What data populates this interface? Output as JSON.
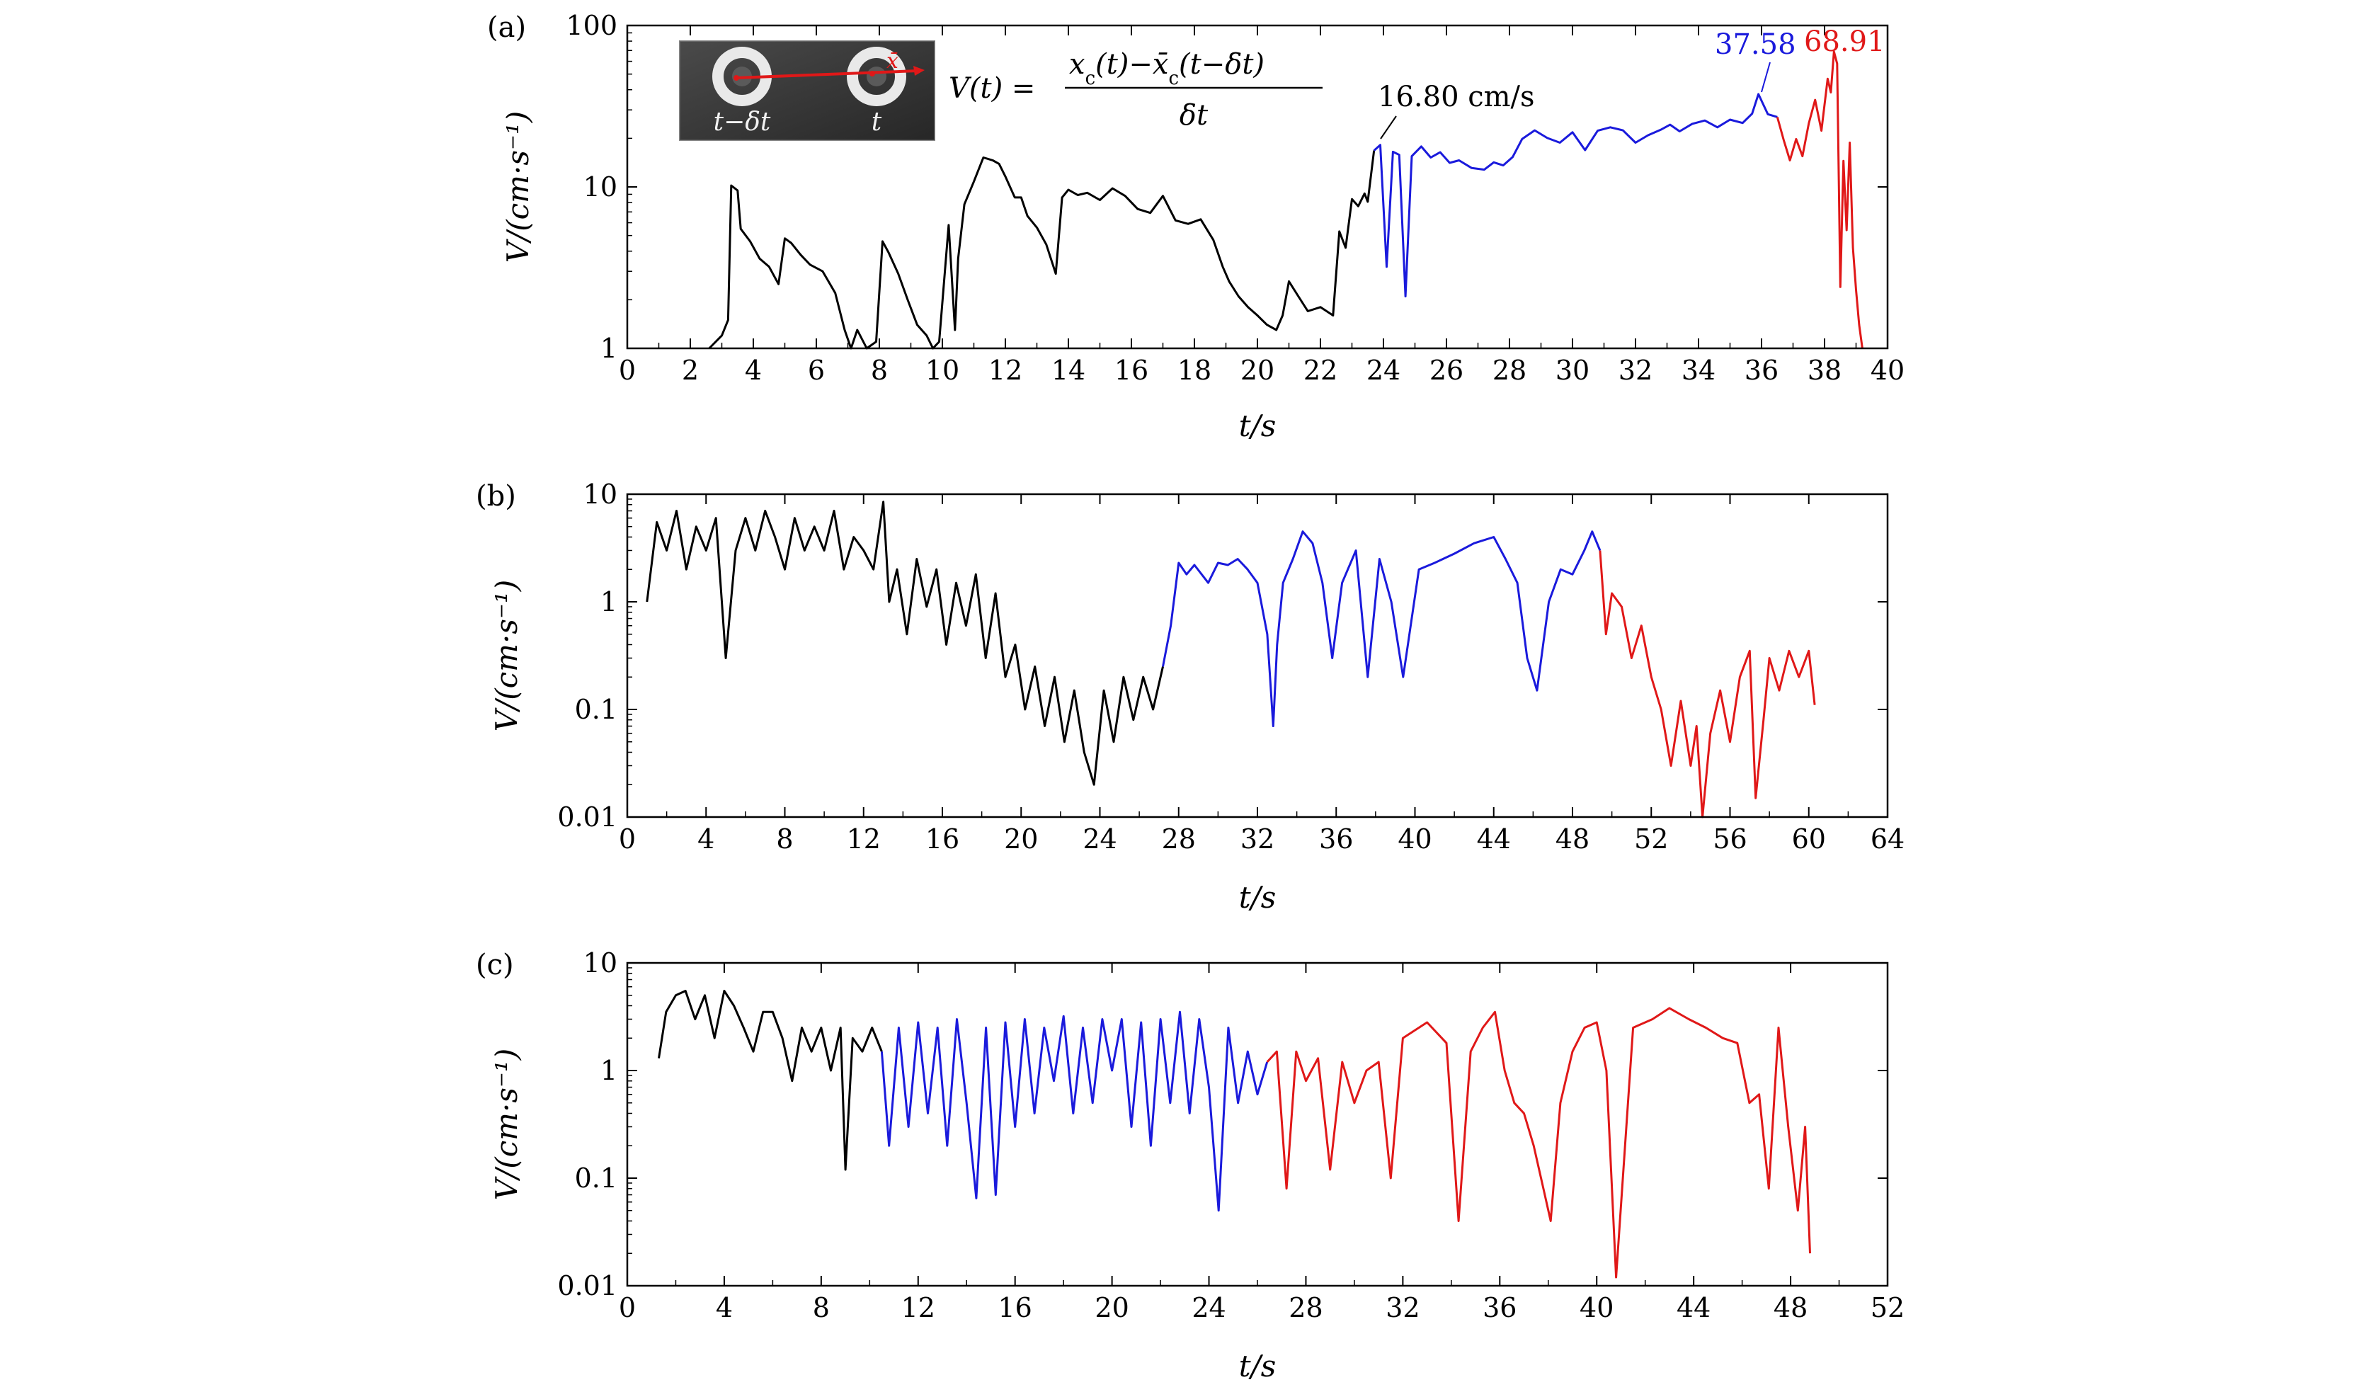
{
  "colors": {
    "early": "#000000",
    "middle": "#1a1adc",
    "late": "#e01818"
  },
  "chart_data": [
    {
      "type": "line",
      "panel": "(a)",
      "yscale": "log",
      "xlabel": "t/s",
      "ylabel": "V/(cm·s⁻¹)",
      "xlim": [
        0,
        40
      ],
      "ylim": [
        1,
        100
      ],
      "xticks": [
        0,
        2,
        4,
        6,
        8,
        10,
        12,
        14,
        16,
        18,
        20,
        22,
        24,
        26,
        28,
        30,
        32,
        34,
        36,
        38,
        40
      ],
      "yticks": [
        1,
        10,
        100
      ],
      "ytick_labels": [
        "1",
        "10",
        "100"
      ],
      "grid": false,
      "inset": {
        "description": "image",
        "label_left": "t−δt",
        "label_right": "t",
        "formula": "V(t) = [x_c(t) − x̄_c(t−δt)] / δt"
      },
      "annotations": [
        {
          "text": "16.80 cm/s",
          "x": 23.7,
          "y": 16.8,
          "color": "#000000"
        },
        {
          "text": "37.58",
          "x": 35.9,
          "y": 37.58,
          "color": "#1a1adc"
        },
        {
          "text": "68.91",
          "x": 38.3,
          "y": 68.91,
          "color": "#e01818"
        }
      ],
      "series": [
        {
          "color": "#000000",
          "x": [
            2.6,
            3.0,
            3.2,
            3.3,
            3.5,
            3.6,
            3.9,
            4.2,
            4.5,
            4.8,
            5.0,
            5.2,
            5.5,
            5.8,
            6.2,
            6.6,
            6.9,
            7.1,
            7.3,
            7.6,
            7.9,
            8.1,
            8.3,
            8.6,
            8.9,
            9.2,
            9.5,
            9.7,
            9.9,
            10.2,
            10.4,
            10.5,
            10.7,
            11.0,
            11.3,
            11.6,
            11.8,
            12.0,
            12.3,
            12.5,
            12.7,
            13.0,
            13.3,
            13.6,
            13.8,
            14.0,
            14.3,
            14.6,
            15.0,
            15.4,
            15.8,
            16.2,
            16.6,
            17.0,
            17.4,
            17.8,
            18.2,
            18.6,
            18.9,
            19.1,
            19.4,
            19.7,
            20.0,
            20.3,
            20.6,
            20.8,
            21.0,
            21.3,
            21.6,
            22.0,
            22.4,
            22.6,
            22.8,
            23.0,
            23.2,
            23.4,
            23.5,
            23.7
          ],
          "y": [
            1,
            1.2,
            1.5,
            10.2,
            9.5,
            5.5,
            4.6,
            3.6,
            3.2,
            2.5,
            4.8,
            4.5,
            3.8,
            3.3,
            3.0,
            2.2,
            1.3,
            1.0,
            1.3,
            1.0,
            1.1,
            4.6,
            3.9,
            2.9,
            2.0,
            1.4,
            1.2,
            0.9,
            1.1,
            5.8,
            1.3,
            3.6,
            7.8,
            10.8,
            15.2,
            14.6,
            13.9,
            11.6,
            8.6,
            8.6,
            6.6,
            5.6,
            4.4,
            2.9,
            8.6,
            9.6,
            8.9,
            9.2,
            8.3,
            9.8,
            8.8,
            7.3,
            6.9,
            8.8,
            6.2,
            5.9,
            6.3,
            4.7,
            3.2,
            2.6,
            2.1,
            1.8,
            1.6,
            1.4,
            1.3,
            1.6,
            2.6,
            2.1,
            1.7,
            1.8,
            1.6,
            5.3,
            4.2,
            8.4,
            7.6,
            9.1,
            8.1,
            16.8
          ]
        },
        {
          "color": "#1a1adc",
          "x": [
            23.7,
            23.9,
            24.1,
            24.3,
            24.5,
            24.7,
            24.9,
            25.2,
            25.5,
            25.8,
            26.1,
            26.4,
            26.8,
            27.2,
            27.5,
            27.8,
            28.1,
            28.4,
            28.8,
            29.2,
            29.6,
            30.0,
            30.4,
            30.8,
            31.2,
            31.6,
            32.0,
            32.4,
            32.8,
            33.1,
            33.4,
            33.8,
            34.2,
            34.6,
            35.0,
            35.4,
            35.7,
            35.9,
            36.2,
            36.5
          ],
          "y": [
            16.8,
            18.2,
            3.2,
            16.5,
            15.8,
            2.1,
            15.5,
            17.8,
            15.2,
            16.4,
            14.1,
            14.6,
            13.1,
            12.8,
            14.2,
            13.6,
            15.3,
            19.8,
            22.4,
            20.1,
            18.8,
            21.8,
            16.9,
            22.3,
            23.4,
            22.4,
            18.8,
            20.9,
            22.6,
            24.3,
            22.1,
            24.6,
            25.8,
            23.4,
            26.1,
            24.9,
            28.4,
            37.58,
            28.2,
            27.1
          ]
        },
        {
          "color": "#e01818",
          "x": [
            36.5,
            36.7,
            36.9,
            37.1,
            37.3,
            37.5,
            37.7,
            37.9,
            38.1,
            38.2,
            38.3,
            38.4,
            38.5,
            38.6,
            38.7,
            38.8,
            38.9,
            39.0,
            39.1,
            39.2
          ],
          "y": [
            27.1,
            19.6,
            14.6,
            19.8,
            15.5,
            24.8,
            34.6,
            22.3,
            46.8,
            38.5,
            68.91,
            58.0,
            2.4,
            14.5,
            5.4,
            18.8,
            4.2,
            2.3,
            1.4,
            1.0
          ]
        }
      ]
    },
    {
      "type": "line",
      "panel": "(b)",
      "yscale": "log",
      "xlabel": "t/s",
      "ylabel": "V/(cm·s⁻¹)",
      "xlim": [
        0,
        64
      ],
      "ylim": [
        0.01,
        10
      ],
      "xticks": [
        0,
        4,
        8,
        12,
        16,
        20,
        24,
        28,
        32,
        36,
        40,
        44,
        48,
        52,
        56,
        60,
        64
      ],
      "yticks": [
        0.01,
        0.1,
        1,
        10
      ],
      "ytick_labels": [
        "0.01",
        "0.1",
        "1",
        "10"
      ],
      "grid": false,
      "series": [
        {
          "color": "#000000",
          "x": [
            1.0,
            1.5,
            2.0,
            2.5,
            3.0,
            3.5,
            4.0,
            4.5,
            5.0,
            5.5,
            6.0,
            6.5,
            7.0,
            7.5,
            8.0,
            8.5,
            9.0,
            9.5,
            10.0,
            10.5,
            11.0,
            11.5,
            12.0,
            12.5,
            13.0,
            13.3,
            13.7,
            14.2,
            14.7,
            15.2,
            15.7,
            16.2,
            16.7,
            17.2,
            17.7,
            18.2,
            18.7,
            19.2,
            19.7,
            20.2,
            20.7,
            21.2,
            21.7,
            22.2,
            22.7,
            23.2,
            23.7,
            24.2,
            24.7,
            25.2,
            25.7,
            26.2,
            26.7,
            27.2
          ],
          "y": [
            1.0,
            5.5,
            3.0,
            7.0,
            2.0,
            5.0,
            3.0,
            6.0,
            0.3,
            3.0,
            6.0,
            3.0,
            7.0,
            4.0,
            2.0,
            6.0,
            3.0,
            5.0,
            3.0,
            7.0,
            2.0,
            4.0,
            3.0,
            2.0,
            8.5,
            1.0,
            2.0,
            0.5,
            2.5,
            0.9,
            2.0,
            0.4,
            1.5,
            0.6,
            1.8,
            0.3,
            1.2,
            0.2,
            0.4,
            0.1,
            0.25,
            0.07,
            0.2,
            0.05,
            0.15,
            0.04,
            0.02,
            0.15,
            0.05,
            0.2,
            0.08,
            0.2,
            0.1,
            0.25
          ]
        },
        {
          "color": "#1a1adc",
          "x": [
            27.2,
            27.6,
            28.0,
            28.4,
            28.8,
            29.5,
            30.0,
            30.5,
            31.0,
            31.5,
            32.0,
            32.5,
            32.8,
            33.0,
            33.3,
            33.8,
            34.3,
            34.8,
            35.3,
            35.8,
            36.3,
            37.0,
            37.6,
            38.2,
            38.8,
            39.4,
            40.2,
            41.0,
            42.0,
            43.0,
            44.0,
            44.6,
            45.2,
            45.7,
            46.2,
            46.8,
            47.4,
            48.0,
            48.6,
            49.0,
            49.4
          ],
          "y": [
            0.25,
            0.6,
            2.3,
            1.8,
            2.2,
            1.5,
            2.3,
            2.2,
            2.5,
            2.0,
            1.5,
            0.5,
            0.07,
            0.4,
            1.5,
            2.5,
            4.5,
            3.5,
            1.5,
            0.3,
            1.5,
            3.0,
            0.2,
            2.5,
            1.0,
            0.2,
            2.0,
            2.3,
            2.8,
            3.5,
            4.0,
            2.5,
            1.5,
            0.3,
            0.15,
            1.0,
            2.0,
            1.8,
            3.0,
            4.5,
            3.0
          ]
        },
        {
          "color": "#e01818",
          "x": [
            49.4,
            49.7,
            50.0,
            50.5,
            51.0,
            51.5,
            52.0,
            52.5,
            53.0,
            53.5,
            54.0,
            54.3,
            54.6,
            55.0,
            55.5,
            56.0,
            56.5,
            57.0,
            57.3,
            57.7,
            58.0,
            58.5,
            59.0,
            59.5,
            60.0,
            60.3
          ],
          "y": [
            3.0,
            0.5,
            1.2,
            0.9,
            0.3,
            0.6,
            0.2,
            0.1,
            0.03,
            0.12,
            0.03,
            0.07,
            0.01,
            0.06,
            0.15,
            0.05,
            0.2,
            0.35,
            0.015,
            0.08,
            0.3,
            0.15,
            0.35,
            0.2,
            0.35,
            0.11
          ]
        }
      ]
    },
    {
      "type": "line",
      "panel": "(c)",
      "yscale": "log",
      "xlabel": "t/s",
      "ylabel": "V/(cm·s⁻¹)",
      "xlim": [
        0,
        52
      ],
      "ylim": [
        0.01,
        10
      ],
      "xticks": [
        0,
        4,
        8,
        12,
        16,
        20,
        24,
        28,
        32,
        36,
        40,
        44,
        48,
        52
      ],
      "yticks": [
        0.01,
        0.1,
        1,
        10
      ],
      "ytick_labels": [
        "0.01",
        "0.1",
        "1",
        "10"
      ],
      "grid": false,
      "series": [
        {
          "color": "#000000",
          "x": [
            1.3,
            1.6,
            2.0,
            2.4,
            2.8,
            3.2,
            3.6,
            4.0,
            4.4,
            4.8,
            5.2,
            5.6,
            6.0,
            6.4,
            6.8,
            7.2,
            7.6,
            8.0,
            8.4,
            8.8,
            9.0,
            9.3,
            9.7,
            10.1,
            10.5
          ],
          "y": [
            1.3,
            3.5,
            5.0,
            5.5,
            3.0,
            5.0,
            2.0,
            5.5,
            4.0,
            2.5,
            1.5,
            3.5,
            3.5,
            2.0,
            0.8,
            2.5,
            1.5,
            2.5,
            1.0,
            2.5,
            0.12,
            2.0,
            1.5,
            2.5,
            1.5
          ]
        },
        {
          "color": "#1a1adc",
          "x": [
            10.5,
            10.8,
            11.2,
            11.6,
            12.0,
            12.4,
            12.8,
            13.2,
            13.6,
            14.0,
            14.4,
            14.8,
            15.2,
            15.6,
            16.0,
            16.4,
            16.8,
            17.2,
            17.6,
            18.0,
            18.4,
            18.8,
            19.2,
            19.6,
            20.0,
            20.4,
            20.8,
            21.2,
            21.6,
            22.0,
            22.4,
            22.8,
            23.2,
            23.6,
            24.0,
            24.4,
            24.8,
            25.2,
            25.6,
            26.0,
            26.4
          ],
          "y": [
            1.5,
            0.2,
            2.5,
            0.3,
            2.8,
            0.4,
            2.5,
            0.2,
            3.0,
            0.5,
            0.065,
            2.5,
            0.07,
            2.8,
            0.3,
            3.0,
            0.4,
            2.5,
            0.8,
            3.2,
            0.4,
            2.5,
            0.5,
            3.0,
            1.0,
            3.0,
            0.3,
            2.8,
            0.2,
            3.0,
            0.5,
            3.5,
            0.4,
            3.0,
            0.7,
            0.05,
            2.5,
            0.5,
            1.5,
            0.6,
            1.2
          ]
        },
        {
          "color": "#e01818",
          "x": [
            26.4,
            26.8,
            27.2,
            27.6,
            28.0,
            28.5,
            29.0,
            29.5,
            30.0,
            30.5,
            31.0,
            31.5,
            32.0,
            33.0,
            33.8,
            34.3,
            34.8,
            35.3,
            35.8,
            36.2,
            36.6,
            37.0,
            37.4,
            37.8,
            38.1,
            38.5,
            39.0,
            39.5,
            40.0,
            40.4,
            40.8,
            41.5,
            42.3,
            43.0,
            43.8,
            44.5,
            45.2,
            45.8,
            46.3,
            46.7,
            47.1,
            47.5,
            47.9,
            48.3,
            48.6,
            48.8
          ],
          "y": [
            1.2,
            1.5,
            0.08,
            1.5,
            0.8,
            1.3,
            0.12,
            1.2,
            0.5,
            1.0,
            1.2,
            0.1,
            2.0,
            2.8,
            1.8,
            0.04,
            1.5,
            2.5,
            3.5,
            1.0,
            0.5,
            0.4,
            0.2,
            0.08,
            0.04,
            0.5,
            1.5,
            2.5,
            2.8,
            1.0,
            0.012,
            2.5,
            3.0,
            3.8,
            3.0,
            2.5,
            2.0,
            1.8,
            0.5,
            0.6,
            0.08,
            2.5,
            0.3,
            0.05,
            0.3,
            0.02
          ]
        }
      ]
    }
  ]
}
